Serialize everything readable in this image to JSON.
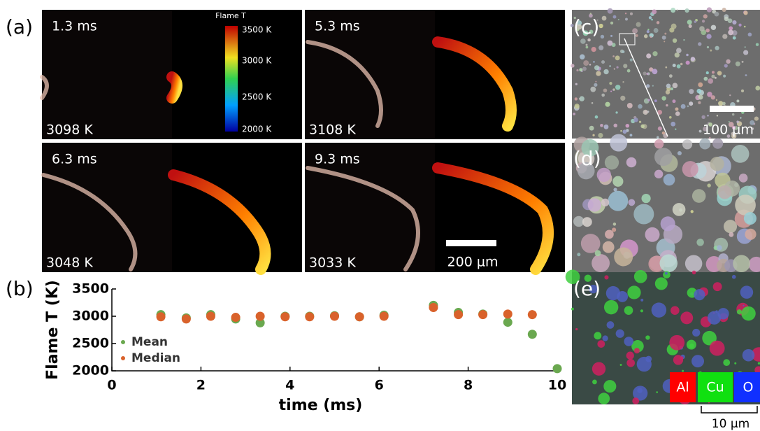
{
  "panels": {
    "a": "(a)",
    "b": "(b)",
    "c": "(c)",
    "d": "(d)",
    "e": "(e)"
  },
  "frames": [
    {
      "time": "1.3 ms",
      "temp": "3098 K"
    },
    {
      "time": "5.3 ms",
      "temp": "3108 K"
    },
    {
      "time": "6.3 ms",
      "temp": "3048 K"
    },
    {
      "time": "9.3 ms",
      "temp": "3033 K"
    }
  ],
  "colorbar": {
    "title": "Flame T",
    "ticks": [
      "3500 K",
      "3000 K",
      "2500 K",
      "2000 K"
    ]
  },
  "scale_bars": {
    "a": "200 µm",
    "c": "100 µm",
    "e": "10 µm"
  },
  "eds_legend": [
    "Al",
    "Cu",
    "O"
  ],
  "chart_data": {
    "type": "scatter",
    "x_label": "time (ms)",
    "y_label": "Flame T (K)",
    "x": [
      1.1,
      1.67,
      2.22,
      2.78,
      3.33,
      3.89,
      4.44,
      5.0,
      5.56,
      6.11,
      7.22,
      7.78,
      8.33,
      8.89,
      9.44,
      10.0
    ],
    "series": [
      {
        "name": "Mean",
        "color": "#6aa84f",
        "values": [
          3030,
          2970,
          3030,
          2950,
          2880,
          3000,
          3000,
          3010,
          2990,
          3020,
          3200,
          3070,
          3040,
          2890,
          2670,
          2040
        ]
      },
      {
        "name": "Median",
        "color": "#d9622b",
        "values": [
          2990,
          2950,
          3000,
          2980,
          3000,
          2990,
          2990,
          3000,
          2990,
          3000,
          3160,
          3030,
          3030,
          3040,
          3030,
          null
        ]
      }
    ],
    "xlim": [
      0,
      10
    ],
    "ylim": [
      2000,
      3500
    ],
    "xticks": [
      0,
      2,
      4,
      6,
      8,
      10
    ],
    "yticks": [
      2000,
      2500,
      3000,
      3500
    ]
  }
}
